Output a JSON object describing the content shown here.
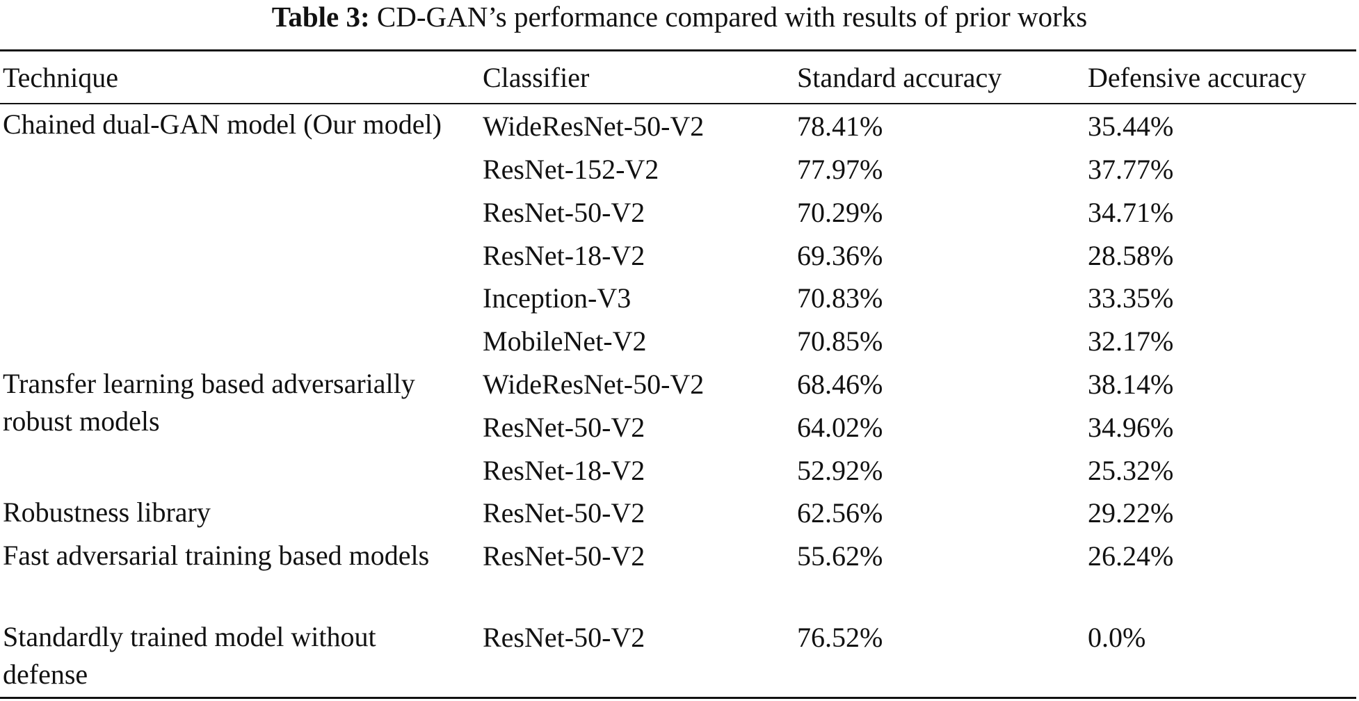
{
  "caption": {
    "label": "Table 3:",
    "text": "CD-GAN’s performance compared with results of prior works"
  },
  "columns": [
    "Technique",
    "Classifier",
    "Standard accuracy",
    "Defensive accuracy"
  ],
  "groups": [
    {
      "technique": "Chained dual-GAN model (Our model)",
      "rows": [
        {
          "classifier": "WideResNet-50-V2",
          "standard": "78.41%",
          "defensive": "35.44%"
        },
        {
          "classifier": "ResNet-152-V2",
          "standard": "77.97%",
          "defensive": "37.77%"
        },
        {
          "classifier": "ResNet-50-V2",
          "standard": "70.29%",
          "defensive": "34.71%"
        },
        {
          "classifier": "ResNet-18-V2",
          "standard": "69.36%",
          "defensive": "28.58%"
        },
        {
          "classifier": "Inception-V3",
          "standard": "70.83%",
          "defensive": "33.35%"
        },
        {
          "classifier": "MobileNet-V2",
          "standard": "70.85%",
          "defensive": "32.17%"
        }
      ]
    },
    {
      "technique": "Transfer learning based adversarially robust models",
      "rows": [
        {
          "classifier": "WideResNet-50-V2",
          "standard": "68.46%",
          "defensive": "38.14%"
        },
        {
          "classifier": "ResNet-50-V2",
          "standard": "64.02%",
          "defensive": "34.96%"
        },
        {
          "classifier": "ResNet-18-V2",
          "standard": "52.92%",
          "defensive": "25.32%"
        }
      ]
    },
    {
      "technique": "Robustness library",
      "rows": [
        {
          "classifier": "ResNet-50-V2",
          "standard": "62.56%",
          "defensive": "29.22%"
        }
      ]
    },
    {
      "technique": "Fast adversarial training based models",
      "rows": [
        {
          "classifier": "ResNet-50-V2",
          "standard": "55.62%",
          "defensive": "26.24%"
        }
      ]
    },
    {
      "technique": "Standardly trained model without defense",
      "rows": [
        {
          "classifier": "ResNet-50-V2",
          "standard": "76.52%",
          "defensive": "0.0%"
        }
      ]
    }
  ]
}
